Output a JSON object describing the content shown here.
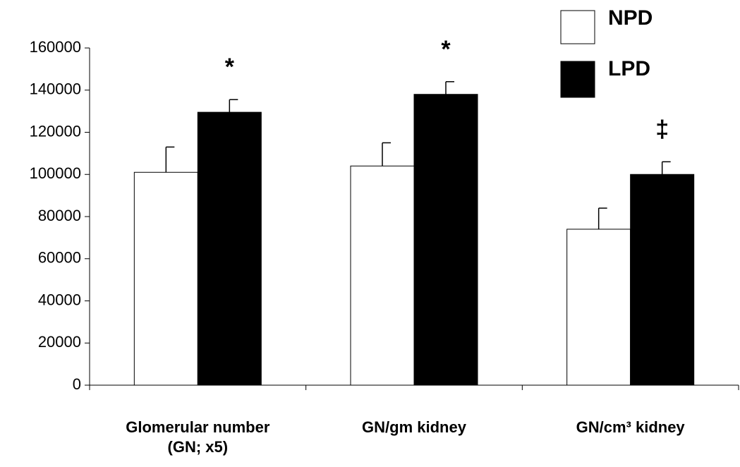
{
  "chart_data": {
    "type": "bar",
    "categories": [
      "Glomerular number (GN; x5)",
      "GN/gm kidney",
      "GN/cm³ kidney"
    ],
    "series": [
      {
        "name": "NPD",
        "color": "#ffffff",
        "values": [
          101000,
          104000,
          74000
        ],
        "errors": [
          12000,
          11000,
          10000
        ]
      },
      {
        "name": "LPD",
        "color": "#000000",
        "values": [
          129500,
          138000,
          100000
        ],
        "errors": [
          6000,
          6000,
          6000
        ]
      }
    ],
    "annotations": [
      "*",
      "*",
      "‡"
    ],
    "ylim": [
      0,
      160000
    ],
    "yticks": [
      0,
      20000,
      40000,
      60000,
      80000,
      100000,
      120000,
      140000,
      160000
    ],
    "legend": "upper right",
    "grid": false
  }
}
